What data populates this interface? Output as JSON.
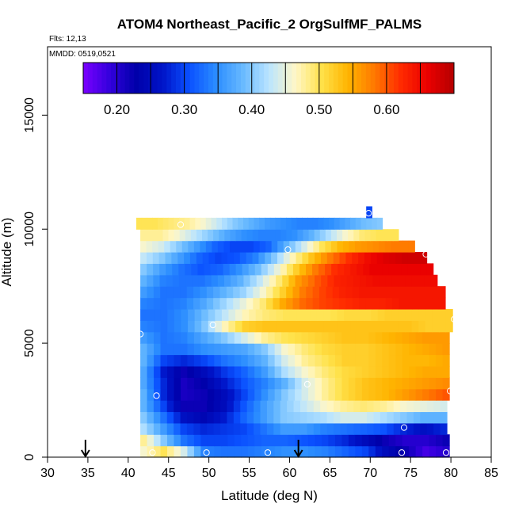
{
  "chart_data": {
    "type": "heatmap",
    "title": "ATOM4 Northeast_Pacific_2 OrgSulfMF_PALMS",
    "flights_label": "Flts: 12,13",
    "dates_label": "MMDD: 0519,0521",
    "xlabel": "Latitude (deg N)",
    "ylabel": "Altitude (m)",
    "xlim": [
      30,
      85
    ],
    "ylim": [
      0,
      18000
    ],
    "x_ticks": [
      30,
      35,
      40,
      45,
      50,
      55,
      60,
      65,
      70,
      75,
      80,
      85
    ],
    "x_tick_labels": [
      "30",
      "35",
      "40",
      "45",
      "50",
      "55",
      "60",
      "65",
      "70",
      "75",
      "80",
      "85"
    ],
    "y_ticks": [
      0,
      5000,
      10000,
      15000
    ],
    "y_tick_labels": [
      "0",
      "5000",
      "10000",
      "15000"
    ],
    "colorbar": {
      "range": [
        0.15,
        0.7
      ],
      "ticks": [
        0.2,
        0.3,
        0.4,
        0.5,
        0.6
      ],
      "tick_labels": [
        "0.20",
        "0.30",
        "0.40",
        "0.50",
        "0.60"
      ],
      "colors": [
        "#7a00ff",
        "#3300dd",
        "#0000aa",
        "#0014c8",
        "#0a50ff",
        "#2a8cff",
        "#66b8ff",
        "#b9e4ff",
        "#fff7c8",
        "#ffe24a",
        "#ffb400",
        "#ff7800",
        "#ff2a00",
        "#ea0000",
        "#b40000"
      ]
    },
    "rows": [
      {
        "alt": 250,
        "lat_start": 41.5,
        "lat_end": 79.8,
        "values": [
          0.46,
          0.5,
          0.44,
          0.34,
          0.33,
          0.33,
          0.34,
          0.35,
          0.35,
          0.34,
          0.32,
          0.3,
          0.25,
          0.22,
          0.18,
          0.2
        ]
      },
      {
        "alt": 750,
        "lat_start": 41.5,
        "lat_end": 79.8,
        "values": [
          0.48,
          0.4,
          0.33,
          0.3,
          0.3,
          0.31,
          0.32,
          0.32,
          0.31,
          0.3,
          0.28,
          0.25,
          0.22,
          0.2,
          0.2,
          0.22
        ]
      },
      {
        "alt": 1250,
        "lat_start": 41.5,
        "lat_end": 79.5,
        "values": [
          0.42,
          0.36,
          0.3,
          0.28,
          0.29,
          0.3,
          0.33,
          0.36,
          0.36,
          0.34,
          0.33,
          0.32,
          0.31,
          0.28,
          0.26,
          0.28
        ]
      },
      {
        "alt": 1750,
        "lat_start": 41.5,
        "lat_end": 79.5,
        "values": [
          0.4,
          0.33,
          0.26,
          0.24,
          0.27,
          0.32,
          0.36,
          0.4,
          0.41,
          0.42,
          0.44,
          0.44,
          0.42,
          0.4,
          0.38,
          0.38
        ]
      },
      {
        "alt": 2250,
        "lat_start": 41.5,
        "lat_end": 79.5,
        "values": [
          0.38,
          0.3,
          0.22,
          0.22,
          0.25,
          0.31,
          0.36,
          0.4,
          0.43,
          0.46,
          0.48,
          0.49,
          0.48,
          0.46,
          0.45,
          0.44
        ]
      },
      {
        "alt": 2750,
        "lat_start": 41.5,
        "lat_end": 79.8,
        "values": [
          0.38,
          0.28,
          0.21,
          0.22,
          0.25,
          0.3,
          0.35,
          0.4,
          0.44,
          0.48,
          0.51,
          0.53,
          0.54,
          0.56,
          0.58,
          0.6
        ]
      },
      {
        "alt": 3250,
        "lat_start": 41.5,
        "lat_end": 79.8,
        "values": [
          0.37,
          0.28,
          0.21,
          0.23,
          0.27,
          0.31,
          0.34,
          0.38,
          0.44,
          0.48,
          0.51,
          0.53,
          0.54,
          0.55,
          0.56,
          0.57
        ]
      },
      {
        "alt": 3750,
        "lat_start": 41.5,
        "lat_end": 79.8,
        "values": [
          0.37,
          0.27,
          0.22,
          0.25,
          0.29,
          0.32,
          0.36,
          0.42,
          0.46,
          0.49,
          0.51,
          0.52,
          0.53,
          0.54,
          0.55,
          0.55
        ]
      },
      {
        "alt": 4250,
        "lat_start": 41.5,
        "lat_end": 79.8,
        "values": [
          0.38,
          0.3,
          0.28,
          0.3,
          0.33,
          0.35,
          0.38,
          0.44,
          0.48,
          0.5,
          0.52,
          0.52,
          0.53,
          0.54,
          0.54,
          0.55
        ]
      },
      {
        "alt": 4750,
        "lat_start": 41.5,
        "lat_end": 79.8,
        "values": [
          0.38,
          0.33,
          0.33,
          0.35,
          0.36,
          0.37,
          0.4,
          0.46,
          0.49,
          0.51,
          0.52,
          0.52,
          0.53,
          0.54,
          0.55,
          0.56
        ]
      },
      {
        "alt": 5250,
        "lat_start": 41.5,
        "lat_end": 79.8,
        "values": [
          0.36,
          0.33,
          0.34,
          0.37,
          0.4,
          0.44,
          0.48,
          0.5,
          0.51,
          0.52,
          0.53,
          0.53,
          0.54,
          0.55,
          0.56,
          0.56
        ]
      },
      {
        "alt": 5750,
        "lat_start": 41.5,
        "lat_end": 80.2,
        "values": [
          0.34,
          0.33,
          0.35,
          0.4,
          0.47,
          0.52,
          0.53,
          0.53,
          0.53,
          0.53,
          0.53,
          0.53,
          0.53,
          0.53,
          0.52,
          0.52
        ]
      },
      {
        "alt": 6250,
        "lat_start": 41.5,
        "lat_end": 80.2,
        "values": [
          0.33,
          0.33,
          0.35,
          0.39,
          0.43,
          0.47,
          0.49,
          0.5,
          0.5,
          0.5,
          0.51,
          0.51,
          0.52,
          0.52,
          0.52,
          0.52
        ]
      },
      {
        "alt": 6750,
        "lat_start": 41.5,
        "lat_end": 79.3,
        "values": [
          0.34,
          0.33,
          0.34,
          0.37,
          0.41,
          0.45,
          0.49,
          0.55,
          0.59,
          0.61,
          0.62,
          0.63,
          0.63,
          0.64,
          0.64,
          0.64
        ]
      },
      {
        "alt": 7250,
        "lat_start": 41.5,
        "lat_end": 79.3,
        "values": [
          0.36,
          0.33,
          0.33,
          0.35,
          0.38,
          0.41,
          0.46,
          0.52,
          0.58,
          0.61,
          0.63,
          0.64,
          0.64,
          0.64,
          0.64,
          0.64
        ]
      },
      {
        "alt": 7750,
        "lat_start": 41.5,
        "lat_end": 78.3,
        "values": [
          0.38,
          0.34,
          0.33,
          0.33,
          0.35,
          0.38,
          0.43,
          0.49,
          0.56,
          0.6,
          0.63,
          0.64,
          0.65,
          0.65,
          0.65,
          0.65
        ]
      },
      {
        "alt": 8250,
        "lat_start": 41.5,
        "lat_end": 77.8,
        "values": [
          0.4,
          0.36,
          0.33,
          0.31,
          0.32,
          0.35,
          0.39,
          0.45,
          0.52,
          0.58,
          0.62,
          0.64,
          0.66,
          0.66,
          0.66,
          0.66
        ]
      },
      {
        "alt": 8750,
        "lat_start": 41.5,
        "lat_end": 77.0,
        "values": [
          0.43,
          0.4,
          0.36,
          0.32,
          0.3,
          0.31,
          0.34,
          0.4,
          0.47,
          0.53,
          0.58,
          0.62,
          0.65,
          0.67,
          0.68,
          0.68
        ]
      },
      {
        "alt": 9250,
        "lat_start": 41.5,
        "lat_end": 75.5,
        "values": [
          0.46,
          0.44,
          0.4,
          0.36,
          0.32,
          0.3,
          0.3,
          0.32,
          0.38,
          0.44,
          0.5,
          0.54,
          0.56,
          0.57,
          0.58,
          0.58
        ]
      },
      {
        "alt": 9750,
        "lat_start": 41.5,
        "lat_end": 73.5,
        "values": [
          0.48,
          0.48,
          0.46,
          0.43,
          0.4,
          0.37,
          0.35,
          0.34,
          0.34,
          0.35,
          0.38,
          0.42,
          0.46,
          0.49,
          0.5,
          0.5
        ]
      },
      {
        "alt": 10250,
        "lat_start": 41.0,
        "lat_end": 71.5,
        "values": [
          0.5,
          0.5,
          0.49,
          0.48,
          0.46,
          0.43,
          0.4,
          0.38,
          0.36,
          0.35,
          0.34,
          0.34,
          0.35,
          0.37,
          0.39,
          0.4
        ]
      },
      {
        "alt": 10750,
        "lat_start": 69.5,
        "lat_end": 70.2,
        "values": [
          0.3
        ]
      }
    ],
    "points": [
      {
        "lat": 41.5,
        "alt": 5400
      },
      {
        "lat": 41.0,
        "alt": 200
      },
      {
        "lat": 43.0,
        "alt": 200
      },
      {
        "lat": 43.5,
        "alt": 2700
      },
      {
        "lat": 46.5,
        "alt": 10200
      },
      {
        "lat": 49.7,
        "alt": 200
      },
      {
        "lat": 50.5,
        "alt": 5800
      },
      {
        "lat": 57.3,
        "alt": 200
      },
      {
        "lat": 59.8,
        "alt": 9100
      },
      {
        "lat": 62.2,
        "alt": 3200
      },
      {
        "lat": 69.8,
        "alt": 10700
      },
      {
        "lat": 73.9,
        "alt": 200
      },
      {
        "lat": 74.2,
        "alt": 1300
      },
      {
        "lat": 76.9,
        "alt": 8900
      },
      {
        "lat": 79.4,
        "alt": 200
      },
      {
        "lat": 79.9,
        "alt": 2900
      },
      {
        "lat": 80.4,
        "alt": 6050
      }
    ],
    "arrows": [
      {
        "lat": 34.7
      },
      {
        "lat": 61.1
      }
    ]
  }
}
